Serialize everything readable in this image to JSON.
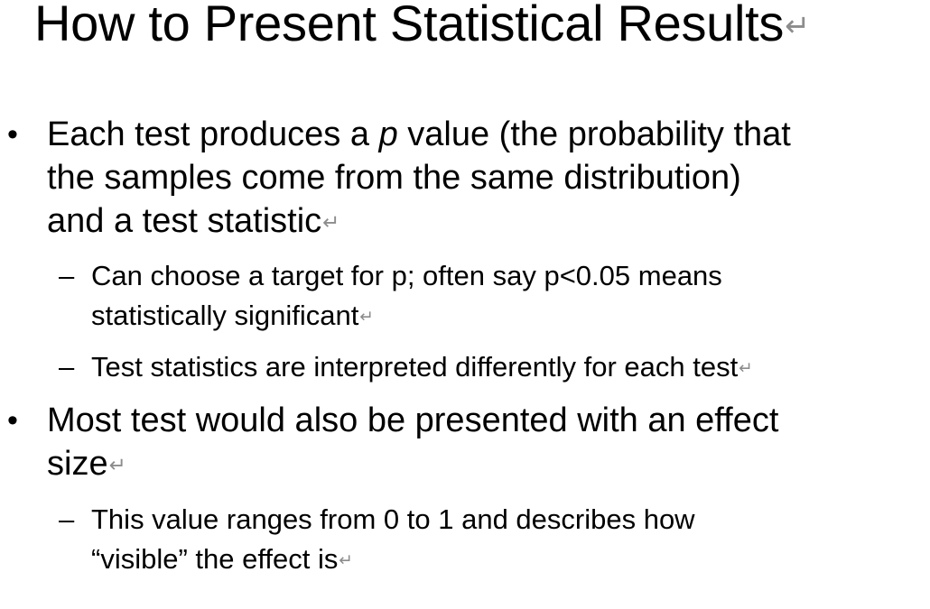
{
  "slide": {
    "title": "How to Present Statistical Results",
    "paragraph_mark": "↵",
    "bullet_marker": "•",
    "sub_marker": "–",
    "items": [
      {
        "level": 1,
        "text_before": "Each test produces a ",
        "text_italic": "p",
        "text_after_line1": " value (the probability that",
        "line2": "the samples come from the same distribution)",
        "line3": "and a test statistic"
      },
      {
        "level": 2,
        "line1": "Can choose a target for p; often say p<0.05 means",
        "line2": "statistically significant"
      },
      {
        "level": 2,
        "line1": "Test statistics are interpreted differently for each test"
      },
      {
        "level": 1,
        "line1": "Most test would also be presented with an effect",
        "line2": "size"
      },
      {
        "level": 2,
        "line1": "This value ranges from 0 to 1 and describes how",
        "line2": "“visible” the effect is"
      }
    ]
  }
}
